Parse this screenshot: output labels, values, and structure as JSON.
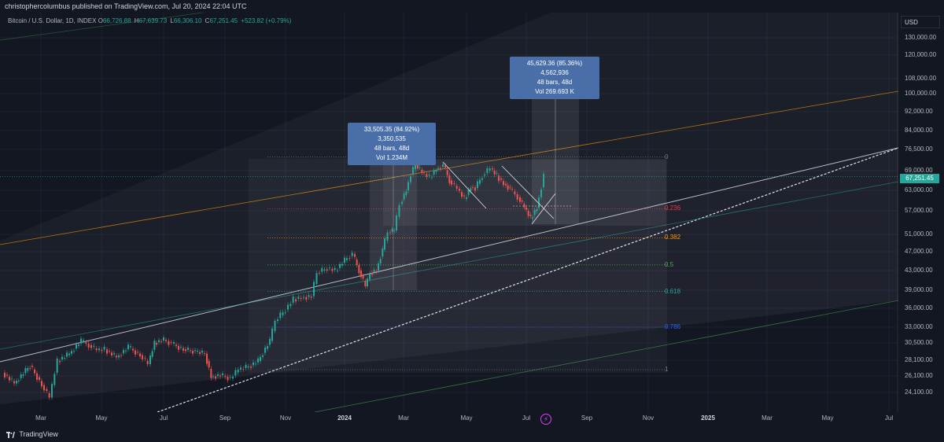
{
  "header": {
    "author": "christophercolumbus",
    "published_text": "published on TradingView.com, Jul 20, 2024 22:04 UTC"
  },
  "legend": {
    "symbol": "Bitcoin / U.S. Dollar, 1D, INDEX",
    "open_label": "O",
    "open": "66,726.88",
    "high_label": "H",
    "high": "67,639.73",
    "low_label": "L",
    "low": "66,306.10",
    "close_label": "C",
    "close": "67,251.45",
    "change": "+523.82 (+0.79%)"
  },
  "price_scale": {
    "currency": "USD",
    "last_price": "67,251.45",
    "labels": [
      "130,000.00",
      "120,000.00",
      "108,000.00",
      "100,000.00",
      "92,000.00",
      "84,000.00",
      "76,500.00",
      "69,000.00",
      "63,000.00",
      "57,000.00",
      "51,000.00",
      "47,000.00",
      "43,000.00",
      "39,000.00",
      "36,000.00",
      "33,000.00",
      "30,500.00",
      "28,100.00",
      "26,100.00",
      "24,100.00"
    ],
    "values": [
      130000,
      120000,
      108000,
      100000,
      92000,
      84000,
      76500,
      69000,
      63000,
      57000,
      51000,
      47000,
      43000,
      39000,
      36000,
      33000,
      30500,
      28100,
      26100,
      24100
    ]
  },
  "time_scale": {
    "labels": [
      {
        "text": "Mar",
        "year": false
      },
      {
        "text": "May",
        "year": false
      },
      {
        "text": "Jul",
        "year": false
      },
      {
        "text": "Sep",
        "year": false
      },
      {
        "text": "Nov",
        "year": false
      },
      {
        "text": "2024",
        "year": true
      },
      {
        "text": "Mar",
        "year": false
      },
      {
        "text": "May",
        "year": false
      },
      {
        "text": "Jul",
        "year": false
      },
      {
        "text": "Sep",
        "year": false
      },
      {
        "text": "Nov",
        "year": false
      },
      {
        "text": "2025",
        "year": true
      },
      {
        "text": "Mar",
        "year": false
      },
      {
        "text": "May",
        "year": false
      },
      {
        "text": "Jul",
        "year": false
      }
    ]
  },
  "measurements": [
    {
      "line1": "33,505.35 (84.92%) 3,350,535",
      "line2": "48 bars, 48d",
      "line3": "Vol 1.234M"
    },
    {
      "line1": "45,629.36 (85.36%) 4,562,936",
      "line2": "48 bars, 48d",
      "line3": "Vol 269.693 K"
    }
  ],
  "fib_levels": [
    {
      "label": "0",
      "price": 73800,
      "color": "#787b86"
    },
    {
      "label": "0.236",
      "price": 57600,
      "color": "#f23645"
    },
    {
      "label": "0.382",
      "price": 50200,
      "color": "#ff9800"
    },
    {
      "label": "0.5",
      "price": 44200,
      "color": "#4caf50"
    },
    {
      "label": "0.618",
      "price": 38800,
      "color": "#26a69a"
    },
    {
      "label": "0.786",
      "price": 33000,
      "color": "#2962ff"
    },
    {
      "label": "1",
      "price": 26900,
      "color": "#787b86"
    }
  ],
  "colors": {
    "up": "#26a69a",
    "down": "#ef5350",
    "background": "#131722",
    "grid": "#1e222d"
  },
  "footer": {
    "brand": "TradingView"
  }
}
